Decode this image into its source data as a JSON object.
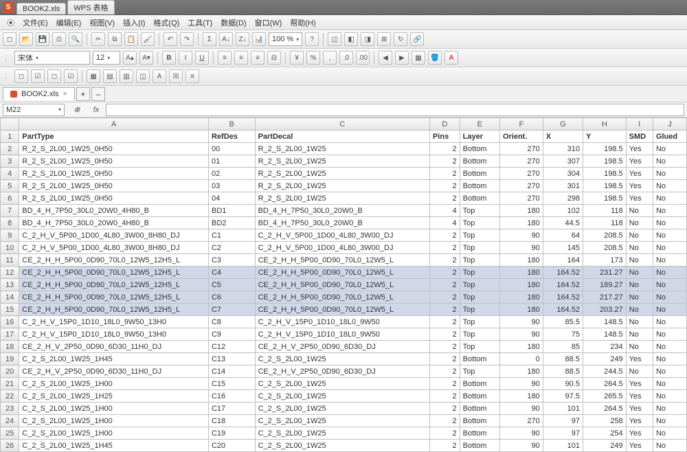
{
  "title": {
    "docTab1": "BOOK2.xls",
    "docTab2": "WPS 表格"
  },
  "menu": [
    "文件(E)",
    "编辑(E)",
    "视图(V)",
    "插入(I)",
    "格式(Q)",
    "工具(T)",
    "数据(D)",
    "窗口(W)",
    "帮助(H)"
  ],
  "fontBar": {
    "fontName": "宋体",
    "fontSize": "12",
    "zoom": "100 %"
  },
  "sheetTab": "BOOK2.xls",
  "nameBox": "M22",
  "columns": [
    "A",
    "B",
    "C",
    "D",
    "E",
    "F",
    "G",
    "H",
    "I",
    "J"
  ],
  "colWidths": [
    "col-A",
    "col-B",
    "col-C",
    "col-D",
    "col-E",
    "col-F",
    "col-G",
    "col-H",
    "col-I",
    "col-J"
  ],
  "headers": [
    "PartType",
    "RefDes",
    "PartDecal",
    "Pins",
    "Layer",
    "Orient.",
    "X",
    "Y",
    "SMD",
    "Glued"
  ],
  "numericCols": [
    3,
    5,
    6,
    7
  ],
  "selectedRows": [
    11,
    12,
    13,
    14
  ],
  "rows": [
    [
      "R_2_S_2L00_1W25_0H50",
      "00",
      "R_2_S_2L00_1W25",
      "2",
      "Bottom",
      "270",
      "310",
      "198.5",
      "Yes",
      "No"
    ],
    [
      "R_2_S_2L00_1W25_0H50",
      "01",
      "R_2_S_2L00_1W25",
      "2",
      "Bottom",
      "270",
      "307",
      "198.5",
      "Yes",
      "No"
    ],
    [
      "R_2_S_2L00_1W25_0H50",
      "02",
      "R_2_S_2L00_1W25",
      "2",
      "Bottom",
      "270",
      "304",
      "198.5",
      "Yes",
      "No"
    ],
    [
      "R_2_S_2L00_1W25_0H50",
      "03",
      "R_2_S_2L00_1W25",
      "2",
      "Bottom",
      "270",
      "301",
      "198.5",
      "Yes",
      "No"
    ],
    [
      "R_2_S_2L00_1W25_0H50",
      "04",
      "R_2_S_2L00_1W25",
      "2",
      "Bottom",
      "270",
      "298",
      "198.5",
      "Yes",
      "No"
    ],
    [
      "BD_4_H_7P50_30L0_20W0_4H80_B",
      "BD1",
      "BD_4_H_7P50_30L0_20W0_B",
      "4",
      "Top",
      "180",
      "102",
      "118",
      "No",
      "No"
    ],
    [
      "BD_4_H_7P50_30L0_20W0_4H80_B",
      "BD2",
      "BD_4_H_7P50_30L0_20W0_B",
      "4",
      "Top",
      "180",
      "44.5",
      "118",
      "No",
      "No"
    ],
    [
      "C_2_H_V_5P00_1D00_4L80_3W00_8H80_DJ",
      "C1",
      "C_2_H_V_5P00_1D00_4L80_3W00_DJ",
      "2",
      "Top",
      "90",
      "64",
      "208.5",
      "No",
      "No"
    ],
    [
      "C_2_H_V_5P00_1D00_4L80_3W00_8H80_DJ",
      "C2",
      "C_2_H_V_5P00_1D00_4L80_3W00_DJ",
      "2",
      "Top",
      "90",
      "145",
      "208.5",
      "No",
      "No"
    ],
    [
      "CE_2_H_H_5P00_0D90_70L0_12W5_12H5_L",
      "C3",
      "CE_2_H_H_5P00_0D90_70L0_12W5_L",
      "2",
      "Top",
      "180",
      "164",
      "173",
      "No",
      "No"
    ],
    [
      "CE_2_H_H_5P00_0D90_70L0_12W5_12H5_L",
      "C4",
      "CE_2_H_H_5P00_0D90_70L0_12W5_L",
      "2",
      "Top",
      "180",
      "164.52",
      "231.27",
      "No",
      "No"
    ],
    [
      "CE_2_H_H_5P00_0D90_70L0_12W5_12H5_L",
      "C5",
      "CE_2_H_H_5P00_0D90_70L0_12W5_L",
      "2",
      "Top",
      "180",
      "164.52",
      "189.27",
      "No",
      "No"
    ],
    [
      "CE_2_H_H_5P00_0D90_70L0_12W5_12H5_L",
      "C6",
      "CE_2_H_H_5P00_0D90_70L0_12W5_L",
      "2",
      "Top",
      "180",
      "164.52",
      "217.27",
      "No",
      "No"
    ],
    [
      "CE_2_H_H_5P00_0D90_70L0_12W5_12H5_L",
      "C7",
      "CE_2_H_H_5P00_0D90_70L0_12W5_L",
      "2",
      "Top",
      "180",
      "164.52",
      "203.27",
      "No",
      "No"
    ],
    [
      "C_2_H_V_15P0_1D10_18L0_9W50_13H0",
      "C8",
      "C_2_H_V_15P0_1D10_18L0_9W50",
      "2",
      "Top",
      "90",
      "85.5",
      "148.5",
      "No",
      "No"
    ],
    [
      "C_2_H_V_15P0_1D10_18L0_9W50_13H0",
      "C9",
      "C_2_H_V_15P0_1D10_18L0_9W50",
      "2",
      "Top",
      "90",
      "75",
      "148.5",
      "No",
      "No"
    ],
    [
      "CE_2_H_V_2P50_0D90_6D30_11H0_DJ",
      "C12",
      "CE_2_H_V_2P50_0D90_6D30_DJ",
      "2",
      "Top",
      "180",
      "85",
      "234",
      "No",
      "No"
    ],
    [
      "C_2_S_2L00_1W25_1H45",
      "C13",
      "C_2_S_2L00_1W25",
      "2",
      "Bottom",
      "0",
      "88.5",
      "249",
      "Yes",
      "No"
    ],
    [
      "CE_2_H_V_2P50_0D90_6D30_11H0_DJ",
      "C14",
      "CE_2_H_V_2P50_0D90_6D30_DJ",
      "2",
      "Top",
      "180",
      "88.5",
      "244.5",
      "No",
      "No"
    ],
    [
      "C_2_S_2L00_1W25_1H00",
      "C15",
      "C_2_S_2L00_1W25",
      "2",
      "Bottom",
      "90",
      "90.5",
      "264.5",
      "Yes",
      "No"
    ],
    [
      "C_2_S_2L00_1W25_1H25",
      "C16",
      "C_2_S_2L00_1W25",
      "2",
      "Bottom",
      "180",
      "97.5",
      "265.5",
      "Yes",
      "No"
    ],
    [
      "C_2_S_2L00_1W25_1H00",
      "C17",
      "C_2_S_2L00_1W25",
      "2",
      "Bottom",
      "90",
      "101",
      "264.5",
      "Yes",
      "No"
    ],
    [
      "C_2_S_2L00_1W25_1H00",
      "C18",
      "C_2_S_2L00_1W25",
      "2",
      "Bottom",
      "270",
      "97",
      "258",
      "Yes",
      "No"
    ],
    [
      "C_2_S_2L00_1W25_1H00",
      "C19",
      "C_2_S_2L00_1W25",
      "2",
      "Bottom",
      "90",
      "97",
      "254",
      "Yes",
      "No"
    ],
    [
      "C_2_S_2L00_1W25_1H45",
      "C20",
      "C_2_S_2L00_1W25",
      "2",
      "Bottom",
      "90",
      "101",
      "249",
      "Yes",
      "No"
    ]
  ]
}
